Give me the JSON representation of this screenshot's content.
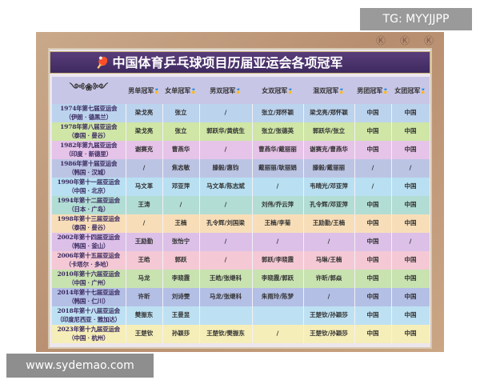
{
  "watermarks": {
    "top": "TG: MYYJJPP",
    "bottom": "www.sydemao.com"
  },
  "title": "中国体育乒乓球项目历届亚运会各项冠军",
  "icons": {
    "title": "ping-pong-paddle-icon",
    "header": "gold-medal-icon"
  },
  "headers": [
    "男单冠军",
    "女单冠军",
    "男双冠军",
    "女双冠军",
    "混双冠军",
    "男团冠军",
    "女团冠军"
  ],
  "rows": [
    {
      "year": "1974年第七届亚运会",
      "place": "（伊朗 · 德黑兰）",
      "color": "#bcd3ee",
      "cells": [
        "梁戈亮",
        "张立",
        "/",
        "张立/郑怀颖",
        "梁戈亮/郑怀颖",
        "中国",
        "中国"
      ]
    },
    {
      "year": "1978年第八届亚运会",
      "place": "（泰国 · 曼谷）",
      "color": "#cfe6a6",
      "cells": [
        "梁戈亮",
        "张立",
        "郭跃华/黄统生",
        "张立/张德英",
        "郭跃华/张立",
        "中国",
        "中国"
      ]
    },
    {
      "year": "1982年第九届亚运会",
      "place": "（印度 · 新德里）",
      "color": "#e6c3e8",
      "cells": [
        "谢赛克",
        "曹燕华",
        "/",
        "曹燕华/戴丽丽",
        "谢赛克/曹燕华",
        "中国",
        "中国"
      ]
    },
    {
      "year": "1986年第十届亚运会",
      "place": "（韩国 · 汉城）",
      "color": "#bcc4e4",
      "cells": [
        "/",
        "焦志敏",
        "滕毅/惠钧",
        "戴丽丽/耿丽娟",
        "滕毅/戴丽丽",
        "/",
        "/"
      ]
    },
    {
      "year": "1990年第十一届亚运会",
      "place": "（中国 · 北京）",
      "color": "#b8e0f2",
      "cells": [
        "马文革",
        "邓亚萍",
        "马文革/陈志斌",
        "/",
        "韦晴光/邓亚萍",
        "/",
        "中国"
      ]
    },
    {
      "year": "1994年第十二届亚运会",
      "place": "（日本 · 广岛）",
      "color": "#b2ddd4",
      "cells": [
        "王涛",
        "/",
        "/",
        "刘伟/乔云萍",
        "孔令辉/邓亚萍",
        "中国",
        "中国"
      ]
    },
    {
      "year": "1998年第十三届亚运会",
      "place": "（泰国 · 曼谷）",
      "color": "#f8deb8",
      "cells": [
        "/",
        "王楠",
        "孔令辉/刘国梁",
        "王楠/李菊",
        "王励勤/王楠",
        "中国",
        "中国"
      ]
    },
    {
      "year": "2002年第十四届亚运会",
      "place": "（韩国 · 釜山）",
      "color": "#dcc0e8",
      "cells": [
        "王励勤",
        "张怡宁",
        "/",
        "/",
        "/",
        "中国",
        "/"
      ]
    },
    {
      "year": "2006年第十五届亚运会",
      "place": "（卡塔尔 · 多哈）",
      "color": "#f4c9d5",
      "cells": [
        "王皓",
        "郭跃",
        "/",
        "郭跃/李晓霞",
        "马琳/王楠",
        "中国",
        "中国"
      ]
    },
    {
      "year": "2010年第十六届亚运会",
      "place": "（中国 · 广州）",
      "color": "#c8e2b0",
      "cells": [
        "马龙",
        "李晓霞",
        "王皓/张继科",
        "李晓霞/郭跃",
        "许昕/郭焱",
        "中国",
        "中国"
      ]
    },
    {
      "year": "2014年第十七届亚运会",
      "place": "（韩国 · 仁川）",
      "color": "#b4bfe6",
      "cells": [
        "许昕",
        "刘诗雯",
        "马龙/张继科",
        "朱雨玲/陈梦",
        "/",
        "中国",
        "中国"
      ]
    },
    {
      "year": "2018年第十八届亚运会",
      "place": "（印度尼西亚 · 雅加达）",
      "color": "#bde1f2",
      "cells": [
        "樊振东",
        "王曼昱",
        "",
        "",
        "王楚钦/孙颖莎",
        "中国",
        "中国"
      ]
    },
    {
      "year": "2023年第十九届亚运会",
      "place": "（中国 · 杭州）",
      "color": "#f6eeb8",
      "cells": [
        "王楚钦",
        "孙颖莎",
        "王楚钦/樊振东",
        "/",
        "王楚钦/孙颖莎",
        "中国",
        "中国"
      ]
    }
  ]
}
